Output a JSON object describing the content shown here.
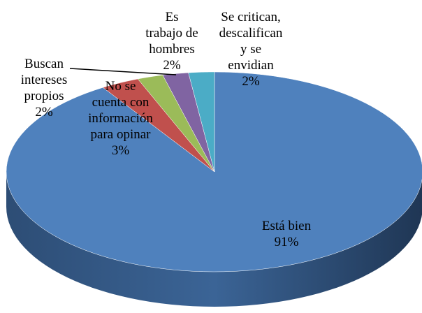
{
  "chart_data": {
    "type": "pie",
    "categories": [
      "Está bien",
      "No se cuenta con información para opinar",
      "Buscan intereses propios",
      "Es trabajo de hombres",
      "Se critican, descalifican y se envidian"
    ],
    "values": [
      91,
      3,
      2,
      2,
      2
    ],
    "value_labels": [
      "91%",
      "3%",
      "2%",
      "2%",
      "2%"
    ],
    "colors": [
      "#4f81bd",
      "#c0504d",
      "#9bbb59",
      "#8064a2",
      "#4bacc6"
    ]
  }
}
